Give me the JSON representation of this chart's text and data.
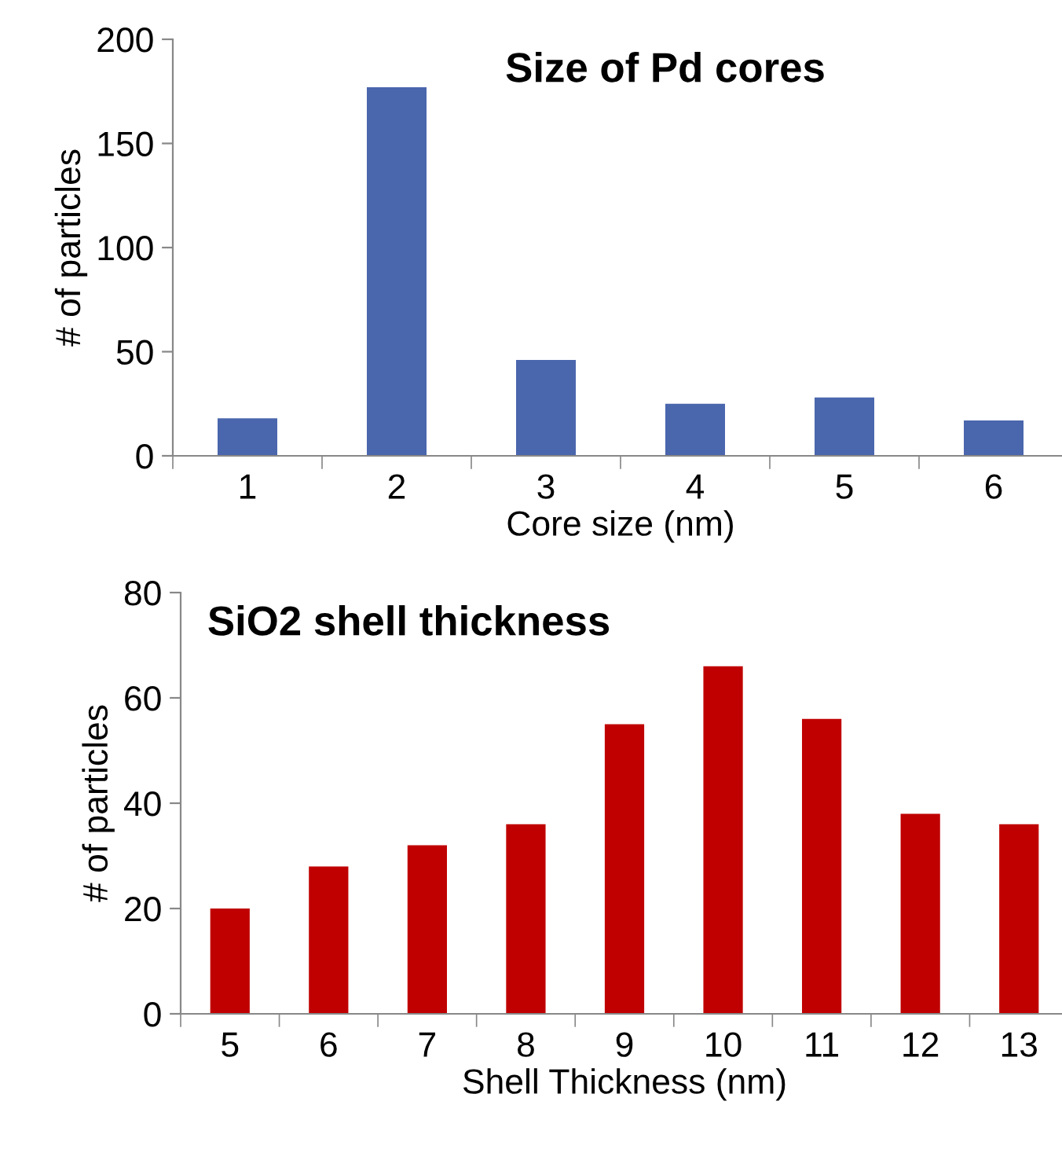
{
  "chart_data": [
    {
      "type": "bar",
      "title": "Size of Pd cores",
      "xlabel": "Core size (nm)",
      "ylabel": "# of particles",
      "categories": [
        "1",
        "2",
        "3",
        "4",
        "5",
        "6"
      ],
      "values": [
        18,
        177,
        46,
        25,
        28,
        17
      ],
      "color": "#4a66ad",
      "ylim": [
        0,
        200
      ],
      "yticks": [
        0,
        50,
        100,
        150,
        200
      ],
      "grid": false
    },
    {
      "type": "bar",
      "title": "SiO2 shell thickness",
      "xlabel": "Shell Thickness (nm)",
      "ylabel": "# of particles",
      "categories": [
        "5",
        "6",
        "7",
        "8",
        "9",
        "10",
        "11",
        "12",
        "13"
      ],
      "values": [
        20,
        28,
        32,
        36,
        55,
        66,
        56,
        38,
        36
      ],
      "color": "#c00000",
      "ylim": [
        0,
        80
      ],
      "yticks": [
        0,
        20,
        40,
        60,
        80
      ],
      "grid": false
    }
  ]
}
